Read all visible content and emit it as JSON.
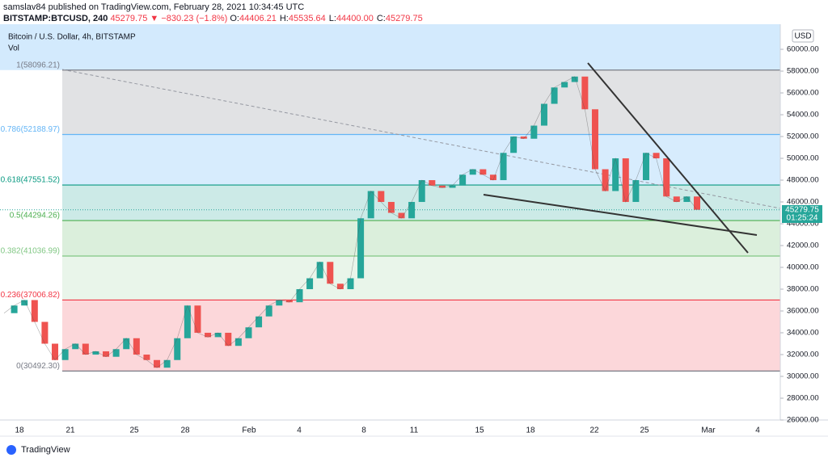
{
  "header": {
    "published": "samslav84 published on TradingView.com, February 28, 2021 10:34:45 UTC",
    "symbol": "BITSTAMP:BTCUSD, 240",
    "last": "45279.75",
    "change": "▼ −830.23 (−1.8%)",
    "ohlc": [
      {
        "key": "O:",
        "value": "44406.21"
      },
      {
        "key": "H:",
        "value": "45535.64"
      },
      {
        "key": "L:",
        "value": "44400.00"
      },
      {
        "key": "C:",
        "value": "45279.75"
      }
    ]
  },
  "chart_data": {
    "type": "line",
    "title": "Bitcoin / U.S. Dollar, 4h, BITSTAMP",
    "subtitle": "Vol",
    "currency": "USD",
    "values": [
      35800,
      36500,
      37000,
      35000,
      33000,
      31500,
      32500,
      33000,
      32000,
      32300,
      31800,
      32500,
      33500,
      32000,
      31500,
      30800,
      31500,
      33500,
      36500,
      34000,
      33600,
      34000,
      32800,
      33500,
      34500,
      35500,
      36500,
      37000,
      36800,
      38000,
      39000,
      40500,
      38500,
      38000,
      39000,
      44500,
      47000,
      46000,
      45000,
      44500,
      46000,
      48000,
      47500,
      47300,
      47500,
      48500,
      49000,
      48500,
      48000,
      50500,
      52000,
      51800,
      53000,
      55000,
      56500,
      57000,
      57500,
      54500,
      49000,
      47000,
      50000,
      46000,
      48000,
      50500,
      50000,
      46500,
      46000,
      46500,
      45279.75
    ],
    "color_up": "#26a69a",
    "color_down": "#ef5350",
    "ylim": [
      26000,
      62300
    ],
    "yticks": [
      {
        "value": 26000,
        "label": "26000.00"
      },
      {
        "value": 28000,
        "label": "28000.00"
      },
      {
        "value": 30000,
        "label": "30000.00"
      },
      {
        "value": 32000,
        "label": "32000.00"
      },
      {
        "value": 34000,
        "label": "34000.00"
      },
      {
        "value": 36000,
        "label": "36000.00"
      },
      {
        "value": 38000,
        "label": "38000.00"
      },
      {
        "value": 40000,
        "label": "40000.00"
      },
      {
        "value": 42000,
        "label": "42000.00"
      },
      {
        "value": 44000,
        "label": "44000.00"
      },
      {
        "value": 46000,
        "label": "46000.00"
      },
      {
        "value": 48000,
        "label": "48000.00"
      },
      {
        "value": 50000,
        "label": "50000.00"
      },
      {
        "value": 52000,
        "label": "52000.00"
      },
      {
        "value": 54000,
        "label": "54000.00"
      },
      {
        "value": 56000,
        "label": "56000.00"
      },
      {
        "value": 58000,
        "label": "58000.00"
      },
      {
        "value": 60000,
        "label": "60000.00"
      }
    ],
    "xticks": [
      "18",
      "21",
      "25",
      "28",
      "Feb",
      "4",
      "8",
      "11",
      "15",
      "18",
      "22",
      "25",
      "Mar",
      "4"
    ],
    "top_fill": "rgba(33,150,243,0.2)",
    "fib_levels": [
      {
        "label": "1(58096.21)",
        "value": 58096.21,
        "color": "#787b86",
        "fill": "rgba(120,123,134,0.22)"
      },
      {
        "label": "0.786(52188.97)",
        "value": 52188.97,
        "color": "#64b5f6",
        "fill": "rgba(33,150,243,0.18)"
      },
      {
        "label": "0.618(47551.52)",
        "value": 47551.52,
        "color": "#089981",
        "fill": "rgba(0,150,136,0.2)"
      },
      {
        "label": "0.5(44294.26)",
        "value": 44294.26,
        "color": "#4caf50",
        "fill": "rgba(76,175,80,0.2)"
      },
      {
        "label": "0.382(41036.99)",
        "value": 41036.99,
        "color": "#81c784",
        "fill": "rgba(76,175,80,0.12)"
      },
      {
        "label": "0.236(37006.82)",
        "value": 37006.82,
        "color": "#f23645",
        "fill": "rgba(242,54,69,0.2)"
      },
      {
        "label": "0(30492.30)",
        "value": 30492.3,
        "color": "#787b86",
        "fill": "none"
      }
    ],
    "last_price": 45279.75,
    "timer": "01:25:24"
  },
  "footer": "TradingView"
}
